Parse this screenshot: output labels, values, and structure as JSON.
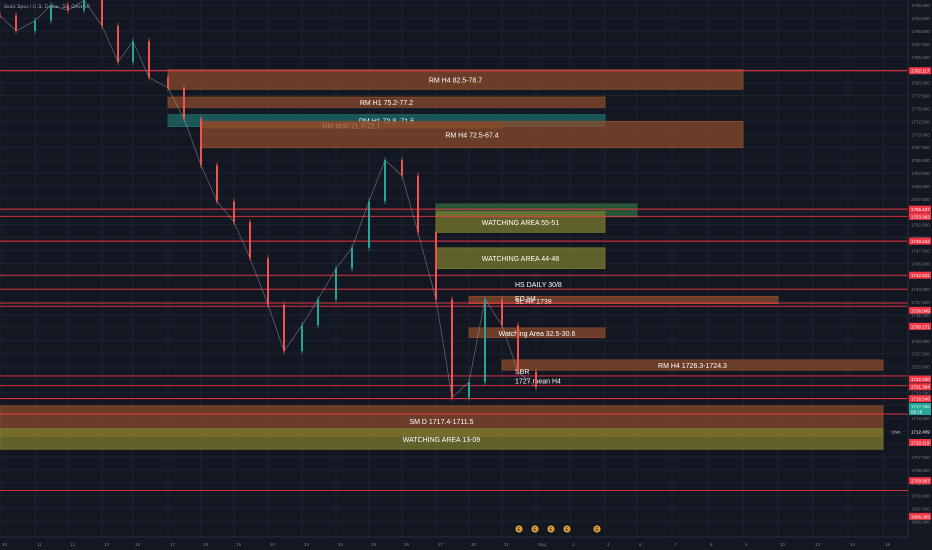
{
  "header": {
    "symbol_line": "Gold Spot / U.S. Dollar, 30, OANDA"
  },
  "chart_data": {
    "type": "candlestick",
    "title": "",
    "ylim": [
      1692,
      1796
    ],
    "price_ticks": [
      "1795.000",
      "1792.500",
      "1790.000",
      "1787.500",
      "1785.000",
      "1782.500",
      "1780.000",
      "1777.500",
      "1775.000",
      "1772.500",
      "1770.000",
      "1767.500",
      "1765.000",
      "1762.500",
      "1760.000",
      "1757.500",
      "1755.000",
      "1752.500",
      "1750.000",
      "1747.500",
      "1745.000",
      "1742.500",
      "1740.000",
      "1737.500",
      "1735.000",
      "1732.500",
      "1730.000",
      "1727.500",
      "1725.000",
      "1722.500",
      "1720.000",
      "1717.500",
      "1715.000",
      "1712.500",
      "1710.000",
      "1707.500",
      "1705.000",
      "1702.500",
      "1700.000",
      "1697.500",
      "1695.000"
    ],
    "date_ticks": [
      "10",
      "11",
      "12",
      "13",
      "16",
      "17",
      "18",
      "19",
      "20",
      "23",
      "24",
      "25",
      "26",
      "27",
      "30",
      "31",
      "Sep",
      "2",
      "3",
      "6",
      "7",
      "8",
      "9",
      "10",
      "13",
      "14",
      "15"
    ],
    "price_labels": [
      {
        "price": 1782.3,
        "text": "1782.117",
        "color": "#f23645"
      },
      {
        "price": 1755.5,
        "text": "1755.437",
        "color": "#f23645"
      },
      {
        "price": 1754.1,
        "text": "1753.963",
        "color": "#f23645"
      },
      {
        "price": 1749.3,
        "text": "1749.234",
        "color": "#f23645"
      },
      {
        "price": 1742.7,
        "text": "1742.911",
        "color": "#f23645"
      },
      {
        "price": 1735.9,
        "text": "1736.049",
        "color": "#f23645"
      },
      {
        "price": 1732.8,
        "text": "1730.171",
        "color": "#f23645"
      },
      {
        "price": 1722.6,
        "text": "1722.250",
        "color": "#f23645"
      },
      {
        "price": 1721.1,
        "text": "1721.394",
        "color": "#f23645"
      },
      {
        "price": 1718.8,
        "text": "1718.546",
        "color": "#f23645"
      },
      {
        "price": 1717.3,
        "text": "1717.299",
        "color": "#26a69a"
      },
      {
        "price": 1716.3,
        "text": "06:19",
        "color": "#26a69a"
      },
      {
        "price": 1712.4,
        "text": "1712.409",
        "color": "#131722"
      },
      {
        "price": 1710.3,
        "text": "1710.119",
        "color": "#f23645"
      },
      {
        "price": 1702.9,
        "text": "1703.987",
        "color": "#f23645"
      },
      {
        "price": 1696.0,
        "text": "1695.309",
        "color": "#f23645"
      }
    ],
    "zones": [
      {
        "label": "RM H4 82.5-78.7",
        "top": 1782.5,
        "bottom": 1778.7,
        "x1": "Aug 17",
        "x2": "Sep 9",
        "color": "#8a4b2b"
      },
      {
        "label": "RM H1 75.2-77.2",
        "top": 1777.2,
        "bottom": 1775.2,
        "x1": "Aug 17",
        "x2": "Sep 3",
        "color": "#8a4b2b"
      },
      {
        "label": "RM  H1 73.8- 71.5",
        "top": 1773.8,
        "bottom": 1771.5,
        "x1": "Aug 17",
        "x2": "Sep 3",
        "color": "#1f6d6a"
      },
      {
        "label": "RM M30 71.2-72.1",
        "top": 1772.1,
        "bottom": 1771.2,
        "x1": "Aug 18",
        "x2": "Aug 31",
        "color": "#8a4b2b"
      },
      {
        "label": "RM H4 72.5-67.4",
        "top": 1772.5,
        "bottom": 1767.4,
        "x1": "Aug 18",
        "x2": "Sep 9",
        "color": "#8a4b2b"
      },
      {
        "label": "",
        "top": 1756.5,
        "bottom": 1754.0,
        "x1": "Aug 27",
        "x2": "Sep 6",
        "color": "#2e6a3d"
      },
      {
        "label": "WATCHING AREA 55-51",
        "top": 1755.0,
        "bottom": 1751.0,
        "x1": "Aug 27",
        "x2": "Sep 3",
        "color": "#7b7b2e"
      },
      {
        "label": "WATCHING AREA 44-48",
        "top": 1748.0,
        "bottom": 1744.0,
        "x1": "Aug 27",
        "x2": "Sep 3",
        "color": "#7b7b2e"
      },
      {
        "label": "",
        "top": 1738.6,
        "bottom": 1737.2,
        "x1": "Aug 30",
        "x2": "Sep 10",
        "color": "#8a4b2b"
      },
      {
        "label": "Watching Area 32.5-30.6",
        "top": 1732.5,
        "bottom": 1730.6,
        "x1": "Aug 30",
        "x2": "Sep 3",
        "color": "#8a4b2b"
      },
      {
        "label": "RM H4 1726.3-1724.3",
        "top": 1726.3,
        "bottom": 1724.3,
        "x1": "Aug 31",
        "x2": "Sep 15",
        "color": "#8a4b2b"
      },
      {
        "label": "SM D 1717.4-1711.5",
        "top": 1717.4,
        "bottom": 1711.5,
        "x1": "Aug 10",
        "x2": "Sep 15",
        "color": "#8a4b2b"
      },
      {
        "label": "WATCHING AREA 13-09",
        "top": 1713.0,
        "bottom": 1709.0,
        "x1": "Aug 10",
        "x2": "Sep 15",
        "color": "#7b7b2e"
      }
    ],
    "lines": [
      {
        "price": 1782.3,
        "label": ""
      },
      {
        "price": 1755.5,
        "label": ""
      },
      {
        "price": 1754.1,
        "label": ""
      },
      {
        "price": 1749.3,
        "label": ""
      },
      {
        "price": 1742.7,
        "label": ""
      },
      {
        "price": 1740.0,
        "label": "HS DAILY 30/8"
      },
      {
        "price": 1736.7,
        "label": "SL H4 1738"
      },
      {
        "price": 1737.3,
        "label": "EG H4"
      },
      {
        "price": 1723.2,
        "label": "SBR"
      },
      {
        "price": 1721.3,
        "label": "1727 mean H4"
      },
      {
        "price": 1718.8,
        "label": ""
      },
      {
        "price": 1715.8,
        "label": ""
      },
      {
        "price": 1701.0,
        "label": ""
      }
    ],
    "series": [
      {
        "name": "",
        "x": [
          "Aug 10",
          "Aug 10",
          "Aug 11",
          "Aug 11",
          "Aug 12",
          "Aug 12",
          "Aug 13",
          "Aug 13",
          "Aug 16",
          "Aug 16",
          "Aug 17",
          "Aug 17",
          "Aug 18",
          "Aug 18",
          "Aug 19",
          "Aug 19",
          "Aug 20",
          "Aug 20",
          "Aug 23",
          "Aug 23",
          "Aug 24",
          "Aug 24",
          "Aug 25",
          "Aug 25",
          "Aug 26",
          "Aug 26",
          "Aug 27",
          "Aug 27",
          "Aug 30",
          "Aug 30",
          "Aug 31",
          "Aug 31",
          "Sep 1"
        ],
        "close": [
          1793,
          1790,
          1792,
          1795,
          1794,
          1796,
          1791,
          1784,
          1788,
          1781,
          1779,
          1773,
          1764,
          1757,
          1753,
          1746,
          1737,
          1728,
          1733,
          1738,
          1744,
          1748,
          1757,
          1765,
          1762,
          1751,
          1738,
          1719,
          1722,
          1738,
          1733,
          1724,
          1721
        ]
      }
    ]
  },
  "bottom_badges": [
    "E",
    "E",
    "E",
    "E",
    "E"
  ],
  "live_label": "Live"
}
